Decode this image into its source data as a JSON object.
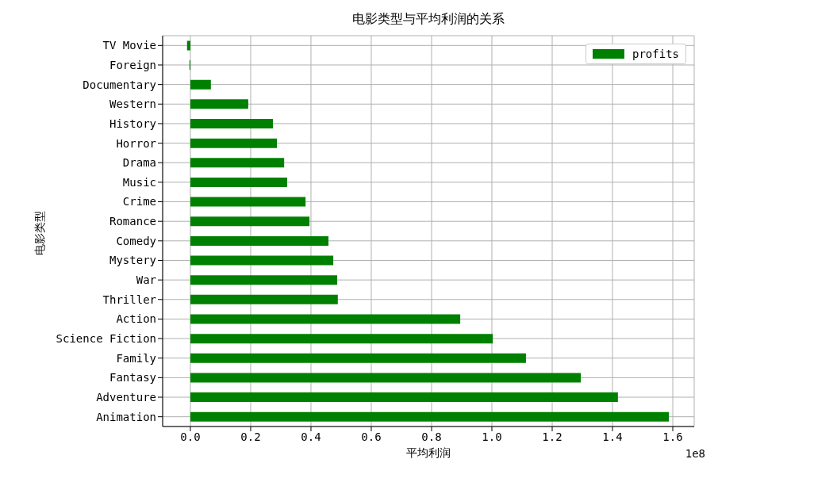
{
  "chart_data": {
    "type": "bar",
    "orientation": "horizontal",
    "title": "电影类型与平均利润的关系",
    "xlabel": "平均利润",
    "ylabel": "电影类型",
    "categories": [
      "TV Movie",
      "Foreign",
      "Documentary",
      "Western",
      "History",
      "Horror",
      "Drama",
      "Music",
      "Crime",
      "Romance",
      "Comedy",
      "Mystery",
      "War",
      "Thriller",
      "Action",
      "Science Fiction",
      "Family",
      "Fantasy",
      "Adventure",
      "Animation"
    ],
    "series": [
      {
        "name": "profits",
        "color": "#008000",
        "values": [
          -0.011,
          -0.003,
          0.068,
          0.192,
          0.274,
          0.287,
          0.311,
          0.321,
          0.382,
          0.395,
          0.458,
          0.474,
          0.487,
          0.489,
          0.895,
          1.003,
          1.113,
          1.295,
          1.418,
          1.587
        ]
      }
    ],
    "xlim": [
      -0.092,
      1.671
    ],
    "xticks": [
      {
        "value": 0,
        "label": "0.0"
      },
      0.2,
      0.4,
      0.6,
      0.8,
      {
        "value": 1,
        "label": "1.0"
      },
      1.2,
      1.4,
      1.6
    ],
    "annotations": [
      "1e8"
    ],
    "grid": true,
    "legend": "top right"
  }
}
